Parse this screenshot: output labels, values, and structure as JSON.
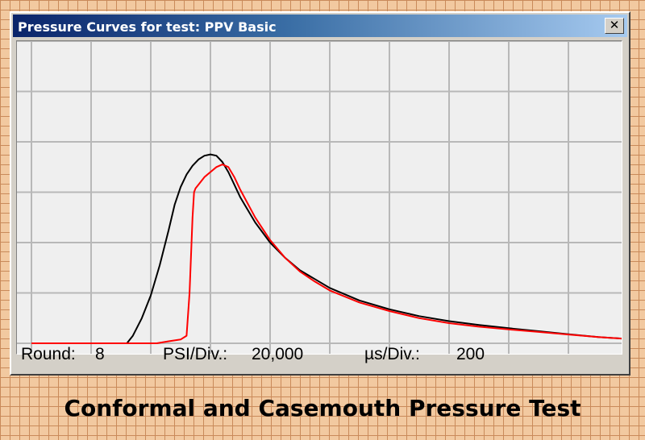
{
  "window": {
    "title": "Pressure Curves for test:  PPV Basic",
    "close_label": "✕"
  },
  "status": {
    "round_label": "Round:",
    "round_value": "8",
    "psi_label": "PSI/Div.:",
    "psi_value": "20,000",
    "us_label": "µs/Div.:",
    "us_value": "200"
  },
  "caption": "Conformal and Casemouth Pressure Test",
  "colors": {
    "grid": "#b8b8b8",
    "curve_black": "#000000",
    "curve_red": "#ff0000",
    "plot_bg": "#efefef"
  },
  "chart_data": {
    "type": "line",
    "title": "",
    "xlabel": "",
    "ylabel": "",
    "xlim": [
      0,
      2000
    ],
    "ylim": [
      0,
      120000
    ],
    "grid": true,
    "series": [
      {
        "color": "#000000",
        "x": [
          0,
          320,
          340,
          370,
          400,
          430,
          460,
          480,
          500,
          520,
          540,
          560,
          580,
          600,
          620,
          640,
          660,
          680,
          700,
          750,
          800,
          850,
          900,
          950,
          1000,
          1100,
          1200,
          1300,
          1400,
          1500,
          1600,
          1700,
          1800,
          1900,
          2000
        ],
        "y": [
          0,
          0,
          3000,
          10000,
          19000,
          31000,
          45000,
          55000,
          62000,
          67000,
          70500,
          73000,
          74500,
          75000,
          74500,
          72000,
          68000,
          63000,
          58000,
          48000,
          40000,
          34000,
          29000,
          25500,
          22000,
          17000,
          13500,
          10800,
          8800,
          7300,
          6000,
          4800,
          3600,
          2500,
          1700
        ]
      },
      {
        "color": "#ff0000",
        "x": [
          0,
          420,
          460,
          500,
          520,
          530,
          540,
          545,
          550,
          560,
          580,
          600,
          620,
          640,
          660,
          680,
          700,
          750,
          800,
          850,
          900,
          950,
          1000,
          1100,
          1200,
          1300,
          1400,
          1500,
          1600,
          1700,
          1800,
          1900,
          2000
        ],
        "y": [
          0,
          0,
          800,
          1500,
          3000,
          20000,
          50000,
          60000,
          61500,
          63000,
          66000,
          68000,
          70000,
          71000,
          70000,
          66000,
          61000,
          50000,
          41000,
          34000,
          28500,
          24500,
          21000,
          16200,
          12800,
          10000,
          8000,
          6600,
          5500,
          4500,
          3500,
          2500,
          1700
        ]
      }
    ]
  }
}
